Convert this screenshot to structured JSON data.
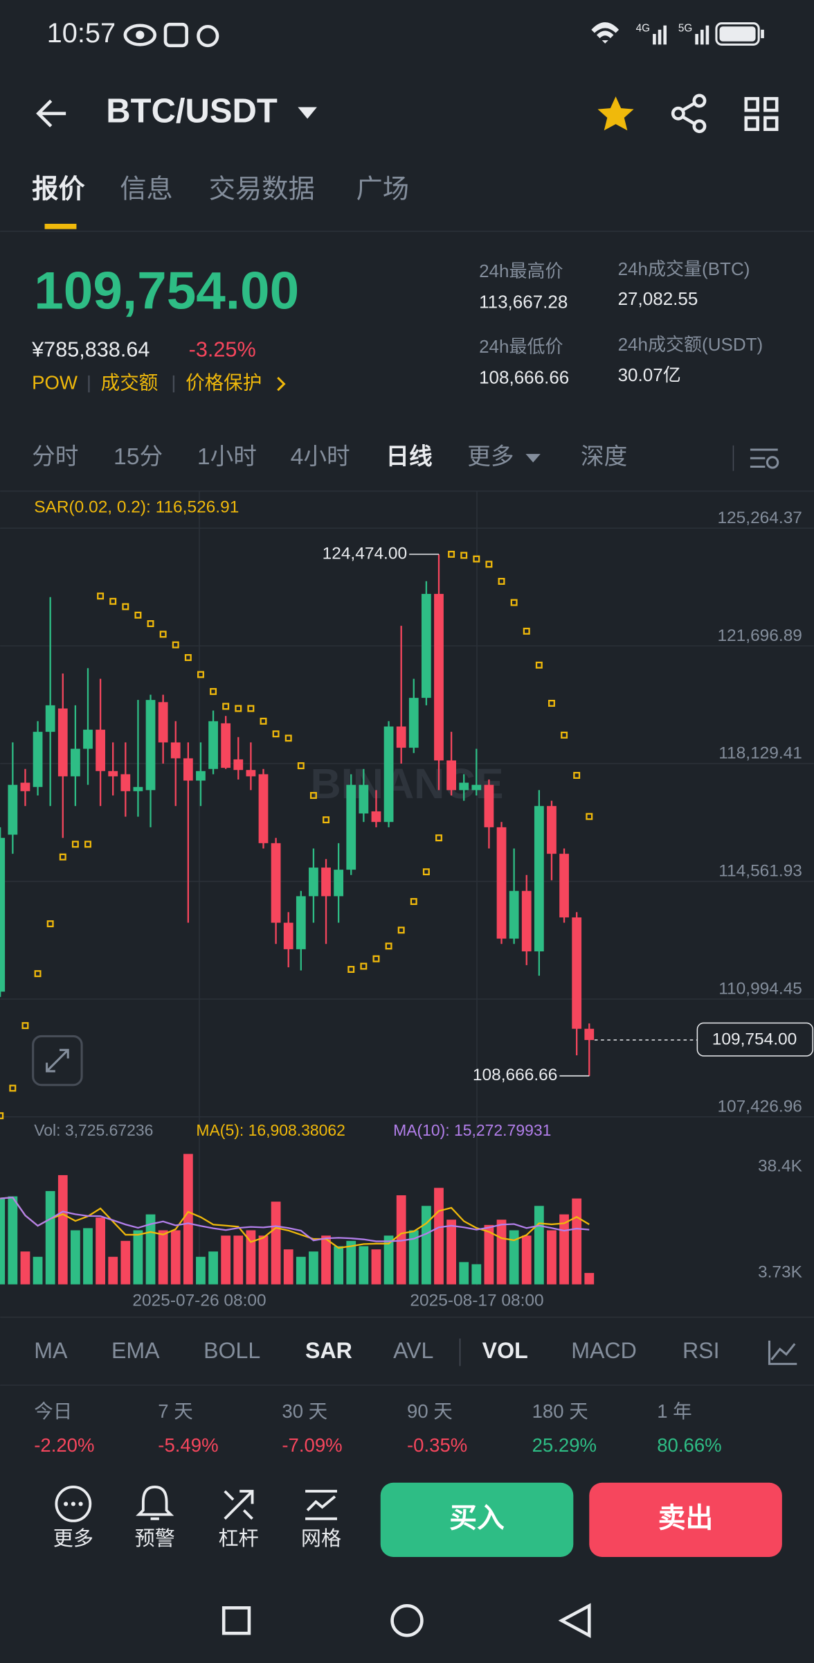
{
  "status_bar": {
    "time": "10:57",
    "networks": [
      "4G",
      "5G"
    ]
  },
  "header": {
    "pair": "BTC/USDT"
  },
  "tabs": [
    "报价",
    "信息",
    "交易数据",
    "广场"
  ],
  "price": {
    "last": "109,754.00",
    "cny": "¥785,838.64",
    "change": "-3.25%",
    "tags": [
      "POW",
      "成交额",
      "价格保护"
    ]
  },
  "stats": [
    {
      "label": "24h最高价",
      "value": "113,667.28"
    },
    {
      "label": "24h成交量(BTC)",
      "value": "27,082.55"
    },
    {
      "label": "24h最低价",
      "value": "108,666.66"
    },
    {
      "label": "24h成交额(USDT)",
      "value": "30.07亿"
    }
  ],
  "intervals": [
    "分时",
    "15分",
    "1小时",
    "4小时",
    "日线",
    "更多",
    "深度"
  ],
  "chart_data": {
    "type": "candlestick",
    "watermark": "BINANCE",
    "sar_legend": "SAR(0.02, 0.2): 116,526.91",
    "open": [
      111219,
      115976,
      117551,
      117422,
      119093,
      119800,
      117744,
      118579,
      119158,
      117904,
      117808,
      117294,
      117326,
      119993,
      118772,
      118290,
      117615,
      117968,
      119351,
      118258,
      117936,
      117808,
      115719,
      113308,
      112505,
      114112,
      114979,
      114112,
      114915,
      116619,
      116683,
      116361,
      119254,
      118611,
      120122,
      123272,
      118226,
      117326,
      117326,
      117486,
      116201,
      112826,
      114272,
      112440,
      116844,
      115397,
      113469,
      110094
    ],
    "high": [
      116201,
      118772,
      117968,
      119415,
      123175,
      120861,
      119897,
      121022,
      120700,
      118772,
      118772,
      120058,
      120218,
      120218,
      119415,
      118772,
      118772,
      119736,
      119575,
      118933,
      118772,
      117968,
      115879,
      113630,
      114272,
      115558,
      115237,
      115719,
      117808,
      117968,
      117326,
      119415,
      122307,
      120700,
      123657,
      124474,
      119093,
      117808,
      118579,
      117647,
      116361,
      115558,
      114754,
      117326,
      117004,
      115558,
      113630,
      110255
    ],
    "low": [
      111058,
      115397,
      116844,
      117165,
      116844,
      115879,
      116844,
      117486,
      116844,
      117165,
      116522,
      116522,
      116201,
      118129,
      116844,
      113308,
      116844,
      117808,
      117968,
      117647,
      117326,
      115558,
      112665,
      111958,
      111862,
      113308,
      112665,
      113308,
      114754,
      116361,
      116201,
      116201,
      118129,
      118451,
      119897,
      117326,
      117165,
      117004,
      117165,
      115558,
      112665,
      112665,
      112023,
      111701,
      114594,
      113308,
      109291,
      108666.66
    ],
    "close": [
      115879,
      117486,
      117294,
      119093,
      119897,
      117744,
      118579,
      119158,
      117904,
      117744,
      117294,
      117422,
      120058,
      118772,
      118290,
      117615,
      117904,
      119415,
      118001,
      117936,
      117744,
      115719,
      113308,
      112505,
      114112,
      114979,
      114112,
      114915,
      117486,
      117486,
      116361,
      119254,
      118611,
      120122,
      123272,
      118226,
      117326,
      117551,
      117486,
      116201,
      112826,
      114272,
      112440,
      116844,
      115397,
      113469,
      110094,
      109754
    ],
    "sar": [
      107459,
      108294,
      110191,
      111765,
      113276,
      115301,
      115687,
      115687,
      123207,
      123047,
      122886,
      122629,
      122371,
      122050,
      121729,
      121343,
      120829,
      120315,
      119865,
      119800,
      119800,
      119415,
      119030,
      118901,
      118065,
      117165,
      116426,
      null,
      111894,
      111990,
      112215,
      112600,
      113083,
      113951,
      114851,
      115879,
      124474,
      124441,
      124332,
      124171,
      123653,
      123011,
      122143,
      121115,
      119958,
      118994,
      117773,
      116526.91
    ],
    "ylim": [
      107426.96,
      126389
    ],
    "yticks": [
      {
        "value": 125264.37,
        "label": "125,264.37"
      },
      {
        "value": 121696.89,
        "label": "121,696.89"
      },
      {
        "value": 118129.41,
        "label": "118,129.41"
      },
      {
        "value": 114561.93,
        "label": "114,561.93"
      },
      {
        "value": 110994.45,
        "label": "110,994.45"
      },
      {
        "value": 107426.96,
        "label": "107,426.96"
      }
    ],
    "x_labels": [
      "2025-07-26 08:00",
      "2025-08-17 08:00"
    ],
    "high_label": "124,474.00",
    "low_label": "108,666.66",
    "last_label": "109,754.00",
    "volume": {
      "legend": [
        "Vol: 3,725.67236",
        "MA(5): 16,908.38062",
        "MA(10): 15,272.79931"
      ],
      "values": [
        28083,
        28776,
        10748,
        9014,
        30510,
        35710,
        17682,
        18375,
        21842,
        9014,
        14215,
        17682,
        22882,
        17682,
        17682,
        42644,
        9014,
        10748,
        15948,
        15948,
        17682,
        15948,
        27043,
        11441,
        9014,
        10748,
        15948,
        12481,
        14215,
        12481,
        11441,
        15948,
        29123,
        17682,
        25656,
        31550,
        21149,
        7281,
        6587,
        19415,
        21149,
        17682,
        15948,
        25656,
        17682,
        22882,
        28083,
        3725.67
      ],
      "ylim": [
        0,
        45420
      ],
      "yticks": [
        {
          "value": 38400,
          "label": "38.4K"
        },
        {
          "value": 3730,
          "label": "3.73K"
        }
      ]
    }
  },
  "indicators": [
    "MA",
    "EMA",
    "BOLL",
    "SAR",
    "AVL",
    "VOL",
    "MACD",
    "RSI"
  ],
  "performance": [
    {
      "period": "今日",
      "change": "-2.20%"
    },
    {
      "period": "7 天",
      "change": "-5.49%"
    },
    {
      "period": "30 天",
      "change": "-7.09%"
    },
    {
      "period": "90 天",
      "change": "-0.35%"
    },
    {
      "period": "180 天",
      "change": "25.29%"
    },
    {
      "period": "1 年",
      "change": "80.66%"
    }
  ],
  "actions": [
    "更多",
    "预警",
    "杠杆",
    "网格"
  ],
  "buy": "买入",
  "sell": "卖出"
}
